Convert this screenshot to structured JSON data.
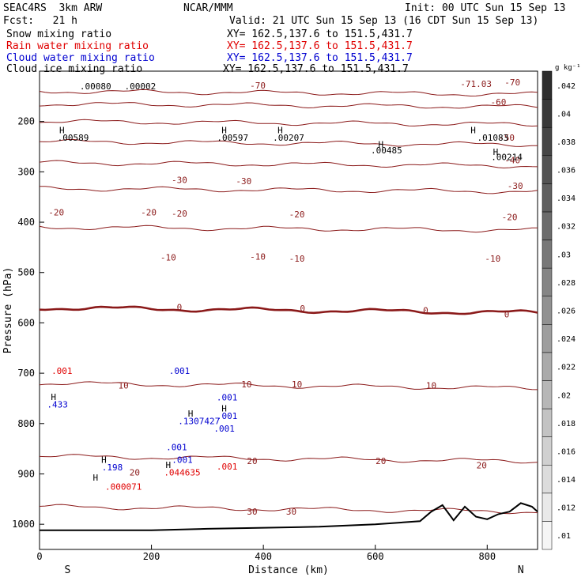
{
  "header": {
    "model": "SEAC4RS  3km ARW",
    "center": "NCAR/MMM",
    "init": "Init: 00 UTC Sun 15 Sep 13",
    "fcst": "Fcst:   21 h",
    "valid": "Valid: 21 UTC Sun 15 Sep 13 (16 CDT Sun 15 Sep 13)",
    "fields": [
      {
        "label": "Snow mixing ratio",
        "xy": "XY= 162.5,137.6 to 151.5,431.7",
        "color": "#000000"
      },
      {
        "label": "Rain water mixing ratio",
        "xy": "XY= 162.5,137.6 to 151.5,431.7",
        "color": "#e00000"
      },
      {
        "label": "Cloud water mixing ratio",
        "xy": "XY= 162.5,137.6 to 151.5,431.7",
        "color": "#0000d0"
      },
      {
        "label": "Cloud ice mixing ratio",
        "xy": "XY= 162.5,137.6 to 151.5,431.7",
        "color": "#000000"
      }
    ]
  },
  "chart_data": {
    "type": "cross-section contour",
    "xlabel": "Distance (km)",
    "ylabel": "Pressure (hPa)",
    "xlim": [
      0,
      890
    ],
    "ylim": [
      1050,
      100
    ],
    "x_ticks": [
      0,
      200,
      400,
      600,
      800
    ],
    "y_ticks": [
      200,
      300,
      400,
      500,
      600,
      700,
      800,
      900,
      1000
    ],
    "end_labels": {
      "left": "S",
      "right": "N"
    },
    "colorbar": {
      "unit": "g kg⁻¹",
      "levels": [
        0.01,
        0.012,
        0.014,
        0.016,
        0.018,
        0.02,
        0.022,
        0.024,
        0.026,
        0.028,
        0.03,
        0.032,
        0.034,
        0.036,
        0.038,
        0.04,
        0.042
      ],
      "labels": [
        ".01",
        ".012",
        ".014",
        ".016",
        ".018",
        ".02",
        ".022",
        ".024",
        ".026",
        ".028",
        ".03",
        ".032",
        ".034",
        ".036",
        ".038",
        ".04",
        ".042"
      ]
    },
    "temperature_isotherms": {
      "color": "#8b1a1a",
      "lines": [
        {
          "label": "-70",
          "pressure": 140
        },
        {
          "label": "-60",
          "pressure": 165
        },
        {
          "label": "-50",
          "pressure": 200
        },
        {
          "label": "-40",
          "pressure": 240
        },
        {
          "label": "-30",
          "pressure": 282
        },
        {
          "label": "-20",
          "pressure": 333
        },
        {
          "label": "-10",
          "pressure": 410
        },
        {
          "label": "0",
          "pressure": 570,
          "bold": true
        },
        {
          "label": "10",
          "pressure": 720
        },
        {
          "label": "20",
          "pressure": 865
        },
        {
          "label": "30",
          "pressure": 965
        }
      ],
      "labels": [
        {
          "text": "-70",
          "x": 390,
          "p": 128
        },
        {
          "text": "-70",
          "x": 845,
          "p": 122
        },
        {
          "text": "-71.03",
          "x": 780,
          "p": 125
        },
        {
          "text": "-60",
          "x": 820,
          "p": 161
        },
        {
          "text": "-50",
          "x": 835,
          "p": 232
        },
        {
          "text": "-40",
          "x": 845,
          "p": 277
        },
        {
          "text": "-30",
          "x": 250,
          "p": 316
        },
        {
          "text": "-30",
          "x": 365,
          "p": 318
        },
        {
          "text": "-30",
          "x": 850,
          "p": 328
        },
        {
          "text": "-20",
          "x": 30,
          "p": 380
        },
        {
          "text": "-20",
          "x": 195,
          "p": 380
        },
        {
          "text": "-20",
          "x": 250,
          "p": 383
        },
        {
          "text": "-20",
          "x": 460,
          "p": 384
        },
        {
          "text": "-20",
          "x": 840,
          "p": 390
        },
        {
          "text": "-10",
          "x": 230,
          "p": 470
        },
        {
          "text": "-10",
          "x": 390,
          "p": 468
        },
        {
          "text": "-10",
          "x": 460,
          "p": 472
        },
        {
          "text": "-10",
          "x": 810,
          "p": 472
        },
        {
          "text": "0",
          "x": 250,
          "p": 569
        },
        {
          "text": "0",
          "x": 470,
          "p": 571
        },
        {
          "text": "0",
          "x": 690,
          "p": 575
        },
        {
          "text": "0",
          "x": 835,
          "p": 583
        },
        {
          "text": "10",
          "x": 150,
          "p": 724
        },
        {
          "text": "10",
          "x": 370,
          "p": 722
        },
        {
          "text": "10",
          "x": 460,
          "p": 722
        },
        {
          "text": "10",
          "x": 700,
          "p": 724
        },
        {
          "text": "20",
          "x": 170,
          "p": 897
        },
        {
          "text": "20",
          "x": 380,
          "p": 874
        },
        {
          "text": "20",
          "x": 610,
          "p": 874
        },
        {
          "text": "20",
          "x": 790,
          "p": 883
        },
        {
          "text": "30",
          "x": 380,
          "p": 975
        },
        {
          "text": "30",
          "x": 450,
          "p": 975
        }
      ]
    },
    "terrain_pressure": [
      [
        0,
        1012
      ],
      [
        100,
        1012
      ],
      [
        200,
        1012
      ],
      [
        300,
        1009
      ],
      [
        400,
        1007
      ],
      [
        500,
        1005
      ],
      [
        600,
        1000
      ],
      [
        680,
        994
      ],
      [
        700,
        975
      ],
      [
        720,
        962
      ],
      [
        740,
        992
      ],
      [
        760,
        965
      ],
      [
        780,
        985
      ],
      [
        800,
        990
      ],
      [
        820,
        980
      ],
      [
        840,
        975
      ],
      [
        860,
        958
      ],
      [
        880,
        965
      ],
      [
        890,
        975
      ]
    ],
    "maxima": [
      {
        "text": ".00589",
        "x": 60,
        "p": 232,
        "color": "#000000"
      },
      {
        "text": ".00597",
        "x": 345,
        "p": 232,
        "color": "#000000"
      },
      {
        "text": ".00207",
        "x": 445,
        "p": 232,
        "color": "#000000"
      },
      {
        "text": ".00485",
        "x": 620,
        "p": 257,
        "color": "#000000"
      },
      {
        "text": ".01083",
        "x": 810,
        "p": 232,
        "color": "#000000"
      },
      {
        "text": ".00214",
        "x": 835,
        "p": 270,
        "color": "#000000"
      },
      {
        "text": ".00080",
        "x": 100,
        "p": 130,
        "color": "#000000"
      },
      {
        "text": ".00002",
        "x": 180,
        "p": 130,
        "color": "#000000"
      },
      {
        "text": ".433",
        "x": 32,
        "p": 762,
        "color": "#0000d0"
      },
      {
        "text": ".198",
        "x": 130,
        "p": 887,
        "color": "#0000d0"
      },
      {
        "text": ".000071",
        "x": 150,
        "p": 925,
        "color": "#e00000"
      },
      {
        "text": ".001",
        "x": 40,
        "p": 695,
        "color": "#e00000"
      },
      {
        "text": ".001",
        "x": 250,
        "p": 695,
        "color": "#0000d0"
      },
      {
        "text": ".001",
        "x": 245,
        "p": 847,
        "color": "#0000d0"
      },
      {
        "text": ".001",
        "x": 255,
        "p": 872,
        "color": "#0000d0"
      },
      {
        "text": ".044635",
        "x": 255,
        "p": 897,
        "color": "#e00000"
      },
      {
        "text": ".001",
        "x": 335,
        "p": 885,
        "color": "#e00000"
      },
      {
        "text": ".1307427",
        "x": 285,
        "p": 795,
        "color": "#0000d0"
      },
      {
        "text": ".001",
        "x": 335,
        "p": 748,
        "color": "#0000d0"
      },
      {
        "text": ".001",
        "x": 335,
        "p": 785,
        "color": "#0000d0"
      },
      {
        "text": ".001",
        "x": 330,
        "p": 810,
        "color": "#0000d0"
      }
    ],
    "h_markers": [
      {
        "x": 40,
        "p": 217
      },
      {
        "x": 330,
        "p": 217
      },
      {
        "x": 430,
        "p": 217
      },
      {
        "x": 610,
        "p": 245
      },
      {
        "x": 775,
        "p": 217
      },
      {
        "x": 815,
        "p": 260
      },
      {
        "x": 25,
        "p": 747
      },
      {
        "x": 115,
        "p": 872
      },
      {
        "x": 100,
        "p": 907
      },
      {
        "x": 230,
        "p": 882
      },
      {
        "x": 270,
        "p": 780
      },
      {
        "x": 330,
        "p": 770
      }
    ]
  }
}
